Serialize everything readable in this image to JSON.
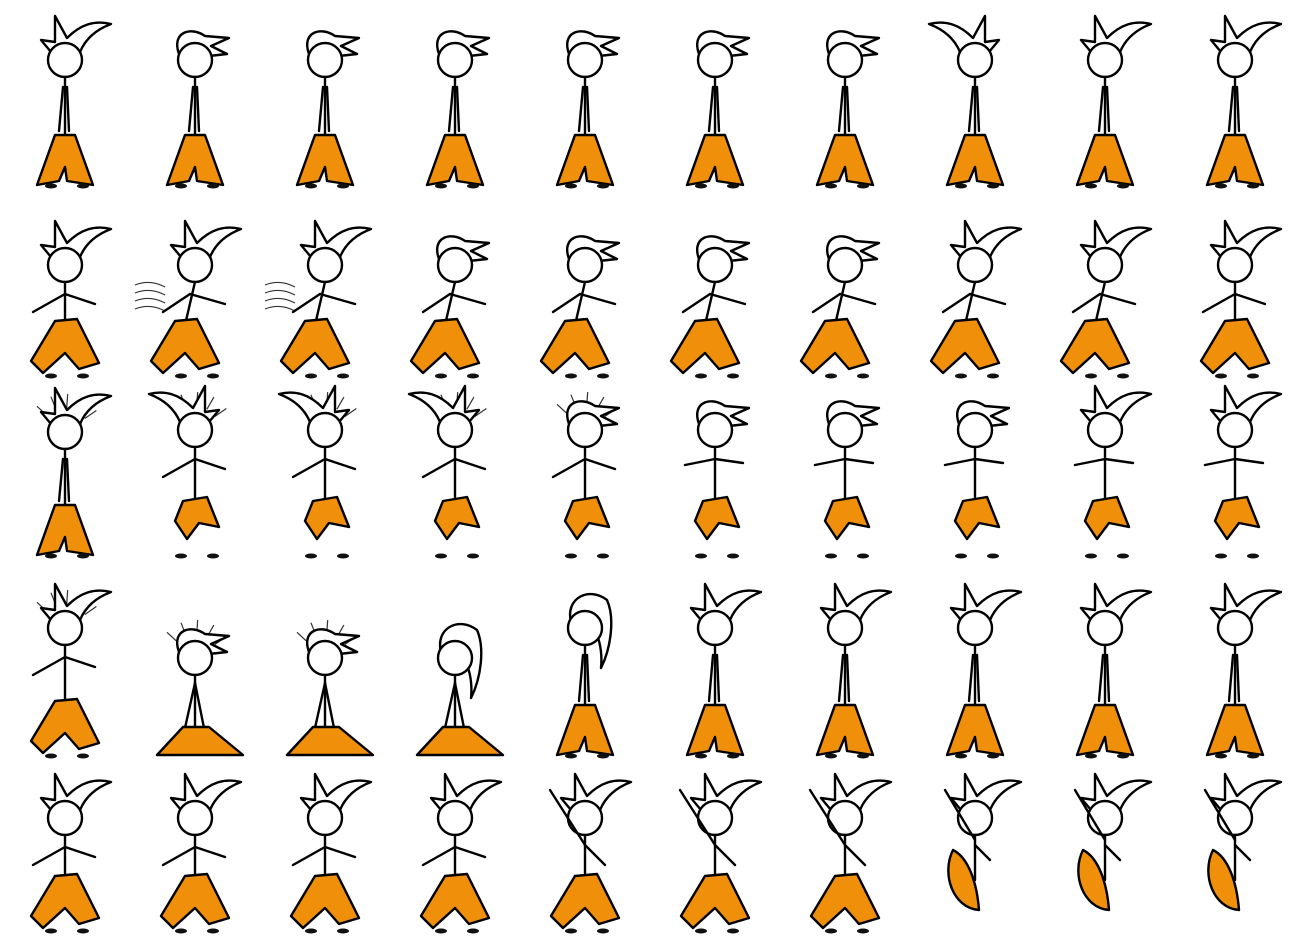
{
  "sprite_sheet": {
    "background": "#ffffff",
    "colors": {
      "pants": "#f0900a",
      "outline": "#000000",
      "head_fill": "#ffffff",
      "shoe": "#111111"
    },
    "rows": [
      {
        "name": "idle",
        "frames": [
          {
            "pose": "stand",
            "hair": "spiky",
            "hair_dir": 1
          },
          {
            "pose": "stand",
            "hair": "swept",
            "hair_dir": -1
          },
          {
            "pose": "stand",
            "hair": "swept",
            "hair_dir": -1
          },
          {
            "pose": "stand",
            "hair": "swept",
            "hair_dir": -1
          },
          {
            "pose": "stand",
            "hair": "swept",
            "hair_dir": -1
          },
          {
            "pose": "stand",
            "hair": "swept",
            "hair_dir": -1
          },
          {
            "pose": "stand",
            "hair": "swept",
            "hair_dir": -1
          },
          {
            "pose": "stand",
            "hair": "spiky",
            "hair_dir": -1
          },
          {
            "pose": "stand",
            "hair": "spiky",
            "hair_dir": 1
          },
          {
            "pose": "stand",
            "hair": "spiky",
            "hair_dir": 1
          }
        ]
      },
      {
        "name": "run",
        "frames": [
          {
            "pose": "walk",
            "hair": "spiky",
            "hair_dir": 1
          },
          {
            "pose": "run",
            "hair": "spiky",
            "hair_dir": 1,
            "speed_lines": true
          },
          {
            "pose": "run",
            "hair": "spiky",
            "hair_dir": 1,
            "speed_lines": true
          },
          {
            "pose": "run",
            "hair": "swept",
            "hair_dir": -1
          },
          {
            "pose": "crouch-run",
            "hair": "swept",
            "hair_dir": -1
          },
          {
            "pose": "hunch",
            "hair": "swept",
            "hair_dir": -1
          },
          {
            "pose": "run",
            "hair": "swept",
            "hair_dir": -1
          },
          {
            "pose": "run",
            "hair": "spiky",
            "hair_dir": 1
          },
          {
            "pose": "run",
            "hair": "spiky",
            "hair_dir": 1
          },
          {
            "pose": "walk",
            "hair": "spiky",
            "hair_dir": 1
          }
        ]
      },
      {
        "name": "jump",
        "frames": [
          {
            "pose": "stand",
            "hair": "spiky",
            "hair_dir": 1,
            "motion_lines": true
          },
          {
            "pose": "jump",
            "hair": "spiky",
            "hair_dir": -1,
            "motion_lines": true
          },
          {
            "pose": "jump",
            "hair": "spiky",
            "hair_dir": -1,
            "motion_lines": true
          },
          {
            "pose": "jump",
            "hair": "spiky",
            "hair_dir": -1,
            "motion_lines": true
          },
          {
            "pose": "jump",
            "hair": "swept",
            "hair_dir": -1,
            "motion_lines": true
          },
          {
            "pose": "float",
            "hair": "swept",
            "hair_dir": -1
          },
          {
            "pose": "float",
            "hair": "swept",
            "hair_dir": -1
          },
          {
            "pose": "float",
            "hair": "swept",
            "hair_dir": -1
          },
          {
            "pose": "float",
            "hair": "spiky",
            "hair_dir": 1
          },
          {
            "pose": "float",
            "hair": "spiky",
            "hair_dir": 1
          }
        ]
      },
      {
        "name": "transform",
        "frames": [
          {
            "pose": "walk",
            "hair": "spiky",
            "hair_dir": 1,
            "motion_lines": true
          },
          {
            "pose": "kneel",
            "hair": "swept",
            "hair_dir": -1,
            "motion_lines": true
          },
          {
            "pose": "kneel",
            "hair": "swept",
            "hair_dir": -1,
            "motion_lines": true
          },
          {
            "pose": "kneel",
            "hair": "long",
            "hair_dir": 1
          },
          {
            "pose": "stand",
            "hair": "long",
            "hair_dir": 1
          },
          {
            "pose": "stand",
            "hair": "spiky",
            "hair_dir": 1
          },
          {
            "pose": "stand",
            "hair": "spiky",
            "hair_dir": 1
          },
          {
            "pose": "stand",
            "hair": "spiky",
            "hair_dir": 1
          },
          {
            "pose": "stand",
            "hair": "spiky",
            "hair_dir": 1
          },
          {
            "pose": "stand",
            "hair": "spiky",
            "hair_dir": 1
          }
        ]
      },
      {
        "name": "attack",
        "frames": [
          {
            "pose": "walk",
            "hair": "spiky",
            "hair_dir": 1
          },
          {
            "pose": "walk",
            "hair": "spiky",
            "hair_dir": 1
          },
          {
            "pose": "walk",
            "hair": "spiky",
            "hair_dir": 1
          },
          {
            "pose": "walk",
            "hair": "spiky",
            "hair_dir": 1
          },
          {
            "pose": "swing",
            "hair": "spiky",
            "hair_dir": 1
          },
          {
            "pose": "swing",
            "hair": "spiky",
            "hair_dir": 1
          },
          {
            "pose": "swing",
            "hair": "spiky",
            "hair_dir": 1
          },
          {
            "pose": "curl",
            "hair": "spiky",
            "hair_dir": 1
          },
          {
            "pose": "curl",
            "hair": "spiky",
            "hair_dir": 1
          },
          {
            "pose": "curl",
            "hair": "spiky",
            "hair_dir": 1
          }
        ]
      }
    ]
  }
}
